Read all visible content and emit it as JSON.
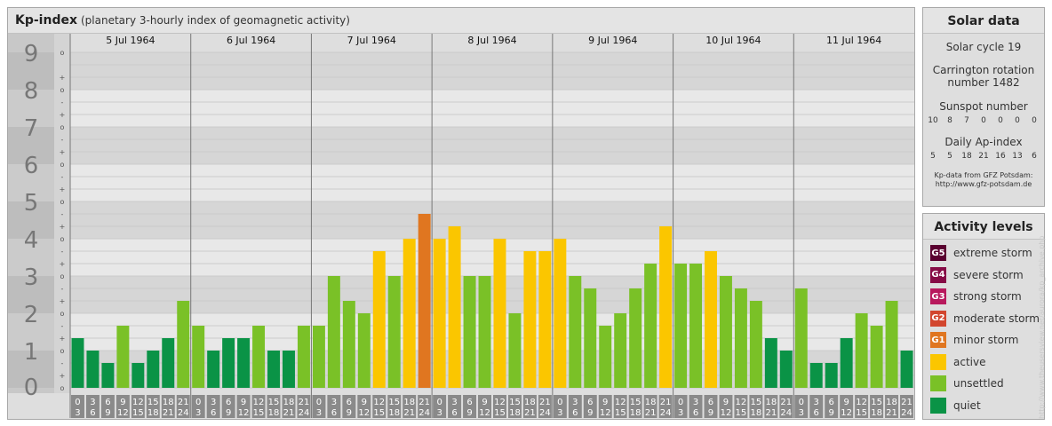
{
  "header": {
    "title": "Kp-index",
    "subtitle": "(planetary 3-hourly index of geomagnetic activity)"
  },
  "chart_data": {
    "type": "bar",
    "ylim": [
      0,
      9
    ],
    "y_ticks": [
      "0",
      "1",
      "2",
      "3",
      "4",
      "5",
      "6",
      "7",
      "8",
      "9"
    ],
    "sub_ticks": [
      "o",
      "+",
      "-"
    ],
    "days": [
      "5 Jul 1964",
      "6 Jul 1964",
      "7 Jul 1964",
      "8 Jul 1964",
      "9 Jul 1964",
      "10 Jul 1964",
      "11 Jul 1964"
    ],
    "hour_starts": [
      "0",
      "3",
      "6",
      "9",
      "12",
      "15",
      "18",
      "21"
    ],
    "hour_ends": [
      "3",
      "6",
      "9",
      "12",
      "15",
      "18",
      "21",
      "24"
    ],
    "values": [
      1.333,
      1.0,
      0.667,
      1.667,
      0.667,
      1.0,
      1.333,
      2.333,
      1.667,
      1.0,
      1.333,
      1.333,
      1.667,
      1.0,
      1.0,
      1.667,
      1.667,
      3.0,
      2.333,
      2.0,
      3.667,
      3.0,
      4.0,
      4.667,
      4.0,
      4.333,
      3.0,
      3.0,
      4.0,
      2.0,
      3.667,
      3.667,
      4.0,
      3.0,
      2.667,
      1.667,
      2.0,
      2.667,
      3.333,
      4.333,
      3.333,
      3.333,
      3.667,
      3.0,
      2.667,
      2.333,
      1.333,
      1.0,
      2.667,
      0.667,
      0.667,
      1.333,
      2.0,
      1.667,
      2.333,
      1.0
    ],
    "colors": {
      "quiet": "#0a9346",
      "unsettled": "#7ac127",
      "active": "#fbc600",
      "minor_storm": "#e07620"
    }
  },
  "solar": {
    "title": "Solar data",
    "cycle": "Solar cycle 19",
    "carrington_line1": "Carrington rotation",
    "carrington_line2": "number 1482",
    "sunspot_label": "Sunspot number",
    "sunspot_values": [
      "10",
      "8",
      "7",
      "0",
      "0",
      "0",
      "0"
    ],
    "ap_label": "Daily Ap-index",
    "ap_values": [
      "5",
      "5",
      "18",
      "21",
      "16",
      "13",
      "6"
    ],
    "source_line1": "Kp-data from GFZ Potsdam:",
    "source_line2": "http://www.gfz-potsdam.de"
  },
  "activity": {
    "title": "Activity levels",
    "items": [
      {
        "code": "G5",
        "label": "extreme storm",
        "color": "#5a0030"
      },
      {
        "code": "G4",
        "label": "severe storm",
        "color": "#860b46"
      },
      {
        "code": "G3",
        "label": "strong storm",
        "color": "#b8195d"
      },
      {
        "code": "G2",
        "label": "moderate storm",
        "color": "#d2462e"
      },
      {
        "code": "G1",
        "label": "minor storm",
        "color": "#e07620"
      },
      {
        "code": "",
        "label": "active",
        "color": "#fbc600"
      },
      {
        "code": "",
        "label": "unsettled",
        "color": "#7ac127"
      },
      {
        "code": "",
        "label": "quiet",
        "color": "#0a9346"
      }
    ]
  },
  "credit": "http://www.theusersview.net/aurora/kp_archive.php"
}
